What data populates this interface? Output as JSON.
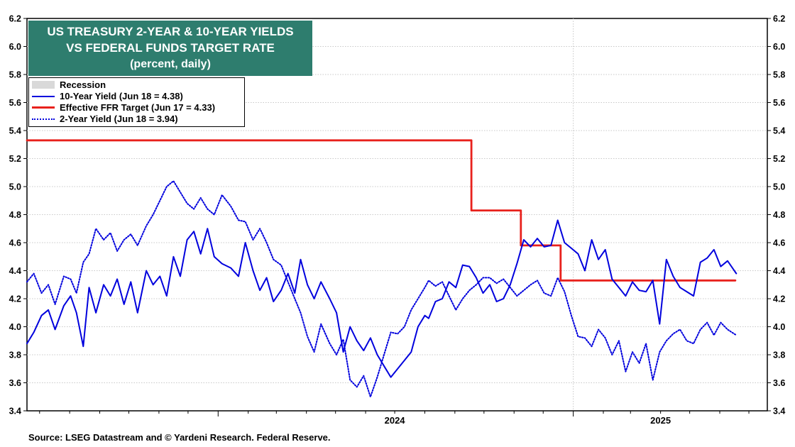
{
  "chart_data": {
    "type": "line",
    "title_lines": [
      "US TREASURY 2-YEAR & 10-YEAR YIELDS",
      "VS FEDERAL FUNDS TARGET RATE",
      "(percent, daily)"
    ],
    "ylim": [
      3.4,
      6.2
    ],
    "yticks": [
      "3.4",
      "3.6",
      "3.8",
      "4.0",
      "4.2",
      "4.4",
      "4.6",
      "4.8",
      "5.0",
      "5.2",
      "5.4",
      "5.6",
      "5.8",
      "6.0",
      "6.2"
    ],
    "xlim": [
      "2023-06-18",
      "2025-07-20"
    ],
    "xtick_labels": [
      {
        "label": "2024",
        "date": "2024-07-01"
      },
      {
        "label": "2025",
        "date": "2025-04-01"
      }
    ],
    "grid": true,
    "legend_position": "top-left",
    "legend": [
      {
        "label": "Recession",
        "style": "area",
        "color": "#d9d9d9"
      },
      {
        "label": "10-Year Yield (Jun 18 = 4.38)",
        "style": "solid",
        "color": "#0000dd"
      },
      {
        "label": "Effective FFR Target (Jun 17 = 4.33)",
        "style": "solid",
        "color": "#e8211c"
      },
      {
        "label": "2-Year Yield (Jun 18 = 3.94)",
        "style": "dotted",
        "color": "#0000dd"
      }
    ],
    "series": [
      {
        "name": "Effective FFR Target (Jun 17 = 4.33)",
        "color": "#e8211c",
        "step": true,
        "x": [
          "2023-06-18",
          "2024-09-18",
          "2024-11-08",
          "2024-12-19",
          "2025-06-17"
        ],
        "values": [
          5.33,
          4.83,
          4.58,
          4.33,
          4.33
        ]
      },
      {
        "name": "10-Year Yield (Jun 18 = 4.38)",
        "color": "#0000dd",
        "dash": "solid",
        "x": [
          "2023-06-18",
          "2023-06-25",
          "2023-07-03",
          "2023-07-10",
          "2023-07-17",
          "2023-07-26",
          "2023-08-02",
          "2023-08-08",
          "2023-08-15",
          "2023-08-21",
          "2023-08-28",
          "2023-09-05",
          "2023-09-12",
          "2023-09-19",
          "2023-09-26",
          "2023-10-03",
          "2023-10-10",
          "2023-10-19",
          "2023-10-26",
          "2023-11-02",
          "2023-11-09",
          "2023-11-16",
          "2023-11-23",
          "2023-11-30",
          "2023-12-07",
          "2023-12-14",
          "2023-12-21",
          "2023-12-28",
          "2024-01-05",
          "2024-01-14",
          "2024-01-22",
          "2024-01-29",
          "2024-02-06",
          "2024-02-13",
          "2024-02-20",
          "2024-02-27",
          "2024-03-06",
          "2024-03-13",
          "2024-03-20",
          "2024-03-26",
          "2024-04-02",
          "2024-04-09",
          "2024-04-16",
          "2024-04-25",
          "2024-05-02",
          "2024-05-09",
          "2024-05-16",
          "2024-05-23",
          "2024-05-30",
          "2024-06-06",
          "2024-06-13",
          "2024-06-20",
          "2024-06-27",
          "2024-07-04",
          "2024-07-11",
          "2024-07-18",
          "2024-07-25",
          "2024-08-01",
          "2024-08-05",
          "2024-08-12",
          "2024-08-19",
          "2024-08-26",
          "2024-09-02",
          "2024-09-09",
          "2024-09-16",
          "2024-09-23",
          "2024-09-30",
          "2024-10-07",
          "2024-10-14",
          "2024-10-21",
          "2024-10-28",
          "2024-11-04",
          "2024-11-11",
          "2024-11-18",
          "2024-11-25",
          "2024-12-02",
          "2024-12-09",
          "2024-12-16",
          "2024-12-23",
          "2024-12-30",
          "2025-01-06",
          "2025-01-13",
          "2025-01-20",
          "2025-01-27",
          "2025-02-03",
          "2025-02-10",
          "2025-02-17",
          "2025-02-24",
          "2025-03-03",
          "2025-03-10",
          "2025-03-17",
          "2025-03-24",
          "2025-03-31",
          "2025-04-07",
          "2025-04-14",
          "2025-04-21",
          "2025-04-28",
          "2025-05-05",
          "2025-05-12",
          "2025-05-19",
          "2025-05-26",
          "2025-06-02",
          "2025-06-09",
          "2025-06-18"
        ],
        "values": [
          3.88,
          3.96,
          4.08,
          4.12,
          3.98,
          4.15,
          4.22,
          4.1,
          3.86,
          4.28,
          4.1,
          4.3,
          4.22,
          4.34,
          4.16,
          4.32,
          4.1,
          4.4,
          4.3,
          4.36,
          4.22,
          4.5,
          4.36,
          4.62,
          4.68,
          4.52,
          4.7,
          4.5,
          4.45,
          4.42,
          4.36,
          4.6,
          4.4,
          4.26,
          4.35,
          4.18,
          4.26,
          4.38,
          4.24,
          4.48,
          4.3,
          4.2,
          4.32,
          4.2,
          4.1,
          3.82,
          4.0,
          3.9,
          3.83,
          3.92,
          3.8,
          3.72,
          3.64,
          3.7,
          3.76,
          3.82,
          4.0,
          4.08,
          4.06,
          4.18,
          4.2,
          4.32,
          4.28,
          4.44,
          4.43,
          4.35,
          4.24,
          4.3,
          4.18,
          4.2,
          4.3,
          4.45,
          4.62,
          4.57,
          4.63,
          4.57,
          4.58,
          4.76,
          4.6,
          4.56,
          4.52,
          4.4,
          4.62,
          4.48,
          4.55,
          4.34,
          4.28,
          4.22,
          4.32,
          4.26,
          4.25,
          4.33,
          4.02,
          4.48,
          4.36,
          4.28,
          4.25,
          4.22,
          4.46,
          4.49,
          4.55,
          4.43,
          4.47,
          4.38
        ]
      },
      {
        "name": "2-Year Yield (Jun 18 = 3.94)",
        "color": "#0000dd",
        "dash": "dotted",
        "x": [
          "2023-06-18",
          "2023-06-25",
          "2023-07-03",
          "2023-07-10",
          "2023-07-17",
          "2023-07-26",
          "2023-08-02",
          "2023-08-08",
          "2023-08-15",
          "2023-08-21",
          "2023-08-28",
          "2023-09-05",
          "2023-09-12",
          "2023-09-19",
          "2023-09-26",
          "2023-10-03",
          "2023-10-10",
          "2023-10-19",
          "2023-10-26",
          "2023-11-02",
          "2023-11-09",
          "2023-11-16",
          "2023-11-23",
          "2023-11-30",
          "2023-12-07",
          "2023-12-14",
          "2023-12-21",
          "2023-12-28",
          "2024-01-05",
          "2024-01-14",
          "2024-01-22",
          "2024-01-29",
          "2024-02-06",
          "2024-02-13",
          "2024-02-20",
          "2024-02-27",
          "2024-03-06",
          "2024-03-13",
          "2024-03-20",
          "2024-03-26",
          "2024-04-02",
          "2024-04-09",
          "2024-04-16",
          "2024-04-25",
          "2024-05-02",
          "2024-05-09",
          "2024-05-16",
          "2024-05-23",
          "2024-05-30",
          "2024-06-06",
          "2024-06-13",
          "2024-06-20",
          "2024-06-27",
          "2024-07-04",
          "2024-07-11",
          "2024-07-18",
          "2024-07-25",
          "2024-08-01",
          "2024-08-05",
          "2024-08-12",
          "2024-08-19",
          "2024-08-26",
          "2024-09-02",
          "2024-09-09",
          "2024-09-16",
          "2024-09-23",
          "2024-09-30",
          "2024-10-07",
          "2024-10-14",
          "2024-10-21",
          "2024-10-28",
          "2024-11-04",
          "2024-11-11",
          "2024-11-18",
          "2024-11-25",
          "2024-12-02",
          "2024-12-09",
          "2024-12-16",
          "2024-12-23",
          "2024-12-30",
          "2025-01-06",
          "2025-01-13",
          "2025-01-20",
          "2025-01-27",
          "2025-02-03",
          "2025-02-10",
          "2025-02-17",
          "2025-02-24",
          "2025-03-03",
          "2025-03-10",
          "2025-03-17",
          "2025-03-24",
          "2025-03-31",
          "2025-04-07",
          "2025-04-14",
          "2025-04-21",
          "2025-04-28",
          "2025-05-05",
          "2025-05-12",
          "2025-05-19",
          "2025-05-26",
          "2025-06-02",
          "2025-06-09",
          "2025-06-18"
        ],
        "values": [
          4.32,
          4.38,
          4.24,
          4.3,
          4.16,
          4.36,
          4.34,
          4.24,
          4.46,
          4.52,
          4.7,
          4.62,
          4.67,
          4.54,
          4.62,
          4.66,
          4.58,
          4.72,
          4.8,
          4.9,
          5.0,
          5.04,
          4.96,
          4.88,
          4.84,
          4.92,
          4.84,
          4.8,
          4.94,
          4.86,
          4.76,
          4.75,
          4.62,
          4.7,
          4.6,
          4.48,
          4.44,
          4.32,
          4.2,
          4.1,
          3.93,
          3.82,
          4.02,
          3.88,
          3.8,
          3.91,
          3.62,
          3.57,
          3.65,
          3.5,
          3.64,
          3.8,
          3.96,
          3.95,
          4.0,
          4.12,
          4.2,
          4.28,
          4.33,
          4.29,
          4.32,
          4.22,
          4.12,
          4.2,
          4.26,
          4.3,
          4.35,
          4.35,
          4.31,
          4.34,
          4.28,
          4.22,
          4.26,
          4.3,
          4.33,
          4.24,
          4.22,
          4.35,
          4.25,
          4.08,
          3.93,
          3.92,
          3.86,
          3.98,
          3.92,
          3.8,
          3.9,
          3.68,
          3.82,
          3.74,
          3.88,
          3.62,
          3.82,
          3.9,
          3.95,
          3.98,
          3.9,
          3.88,
          3.98,
          4.03,
          3.94,
          4.03,
          3.98,
          3.94
        ]
      }
    ],
    "source": "Source: LSEG Datastream and © Yardeni Research. Federal Reserve."
  }
}
